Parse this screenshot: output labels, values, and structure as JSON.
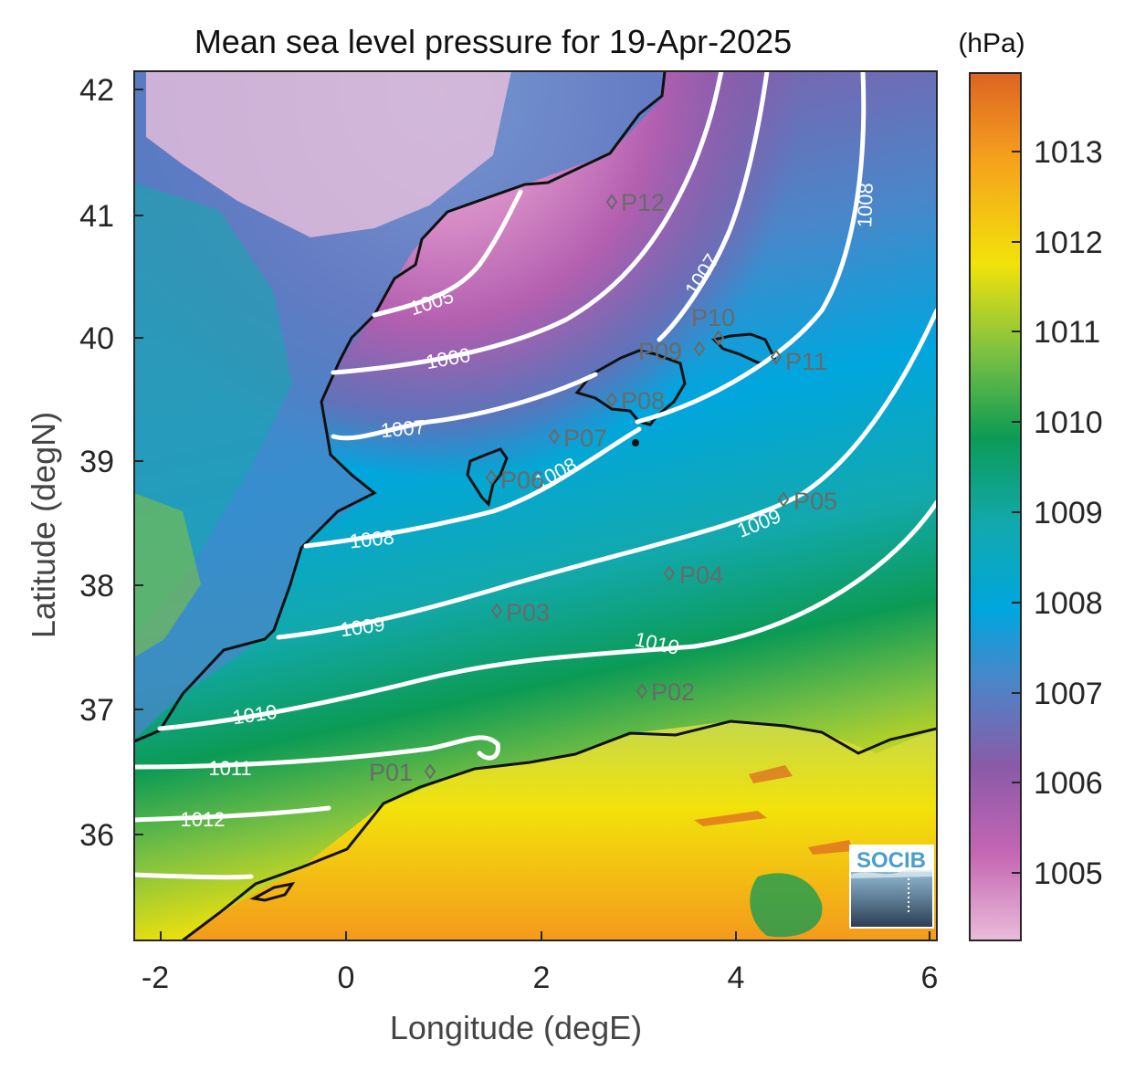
{
  "title": "Mean sea level pressure for 19-Apr-2025",
  "xlabel": "Longitude (degE)",
  "ylabel": "Latitude (degN)",
  "x_ticks": [
    "-2",
    "0",
    "2",
    "4",
    "6"
  ],
  "y_ticks": [
    "42",
    "41",
    "40",
    "39",
    "38",
    "37",
    "36"
  ],
  "colorbar": {
    "unit": "(hPa)",
    "ticks": [
      "1013",
      "1012",
      "1011",
      "1010",
      "1009",
      "1008",
      "1007",
      "1006",
      "1005"
    ],
    "colors": [
      "#e9bcd9",
      "#c566b3",
      "#8a5aa8",
      "#4a86c9",
      "#00a6de",
      "#12a9ad",
      "#0c9b55",
      "#7fc241",
      "#f2e20a",
      "#f6a11d",
      "#dd6323"
    ]
  },
  "contour_labels": [
    "1005",
    "1006",
    "1007",
    "1007",
    "1008",
    "1008",
    "1008",
    "1009",
    "1009",
    "1010",
    "1010",
    "1011",
    "1012"
  ],
  "points": [
    "P01",
    "P02",
    "P03",
    "P04",
    "P05",
    "P06",
    "P07",
    "P08",
    "P09",
    "P10",
    "P11",
    "P12"
  ],
  "logo": "SOCIB",
  "colors": {
    "contour": "#ffffff",
    "coast": "#111111",
    "point_marker": "#6a6a6a"
  }
}
